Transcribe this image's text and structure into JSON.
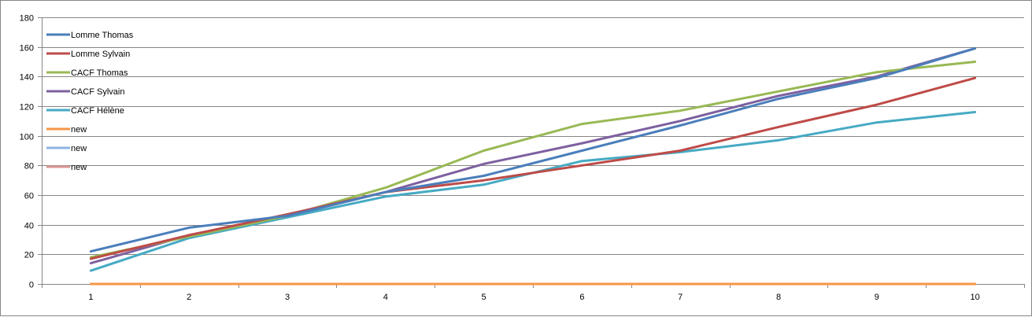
{
  "chart_data": {
    "type": "line",
    "x": [
      1,
      2,
      3,
      4,
      5,
      6,
      7,
      8,
      9,
      10
    ],
    "ylim": [
      0,
      180
    ],
    "y_ticks": [
      0,
      20,
      40,
      60,
      80,
      100,
      120,
      140,
      160,
      180
    ],
    "x_tick_labels": [
      "1",
      "2",
      "3",
      "4",
      "5",
      "6",
      "7",
      "8",
      "9",
      "10"
    ],
    "grid": true,
    "legend_position": "top-left",
    "series": [
      {
        "name": "Lomme Thomas",
        "color": "#4a7ebb",
        "values": [
          22,
          38,
          46,
          62,
          73,
          90,
          107,
          125,
          139,
          159
        ]
      },
      {
        "name": "Lomme Sylvain",
        "color": "#be4b48",
        "values": [
          17,
          33,
          47,
          62,
          70,
          80,
          90,
          106,
          121,
          139
        ]
      },
      {
        "name": "CACF Thomas",
        "color": "#98b954",
        "values": [
          18,
          32,
          46,
          65,
          90,
          108,
          117,
          130,
          143,
          150
        ]
      },
      {
        "name": "CACF Sylvain",
        "color": "#7d60a0",
        "values": [
          14,
          33,
          46,
          62,
          81,
          95,
          110,
          127,
          140,
          159
        ]
      },
      {
        "name": "CACF Hélène",
        "color": "#46aac4",
        "values": [
          9,
          31,
          45,
          59,
          67,
          83,
          89,
          97,
          109,
          116
        ]
      },
      {
        "name": "new",
        "color": "#f79646",
        "values": [
          0,
          0,
          0,
          0,
          0,
          0,
          0,
          0,
          0,
          0
        ]
      },
      {
        "name": "new",
        "color": "#8eb4e3",
        "values": [
          0,
          0,
          0,
          0,
          0,
          0,
          0,
          0,
          0,
          0
        ]
      },
      {
        "name": "new",
        "color": "#d99694",
        "values": [
          0,
          0,
          0,
          0,
          0,
          0,
          0,
          0,
          0,
          0
        ]
      }
    ]
  }
}
